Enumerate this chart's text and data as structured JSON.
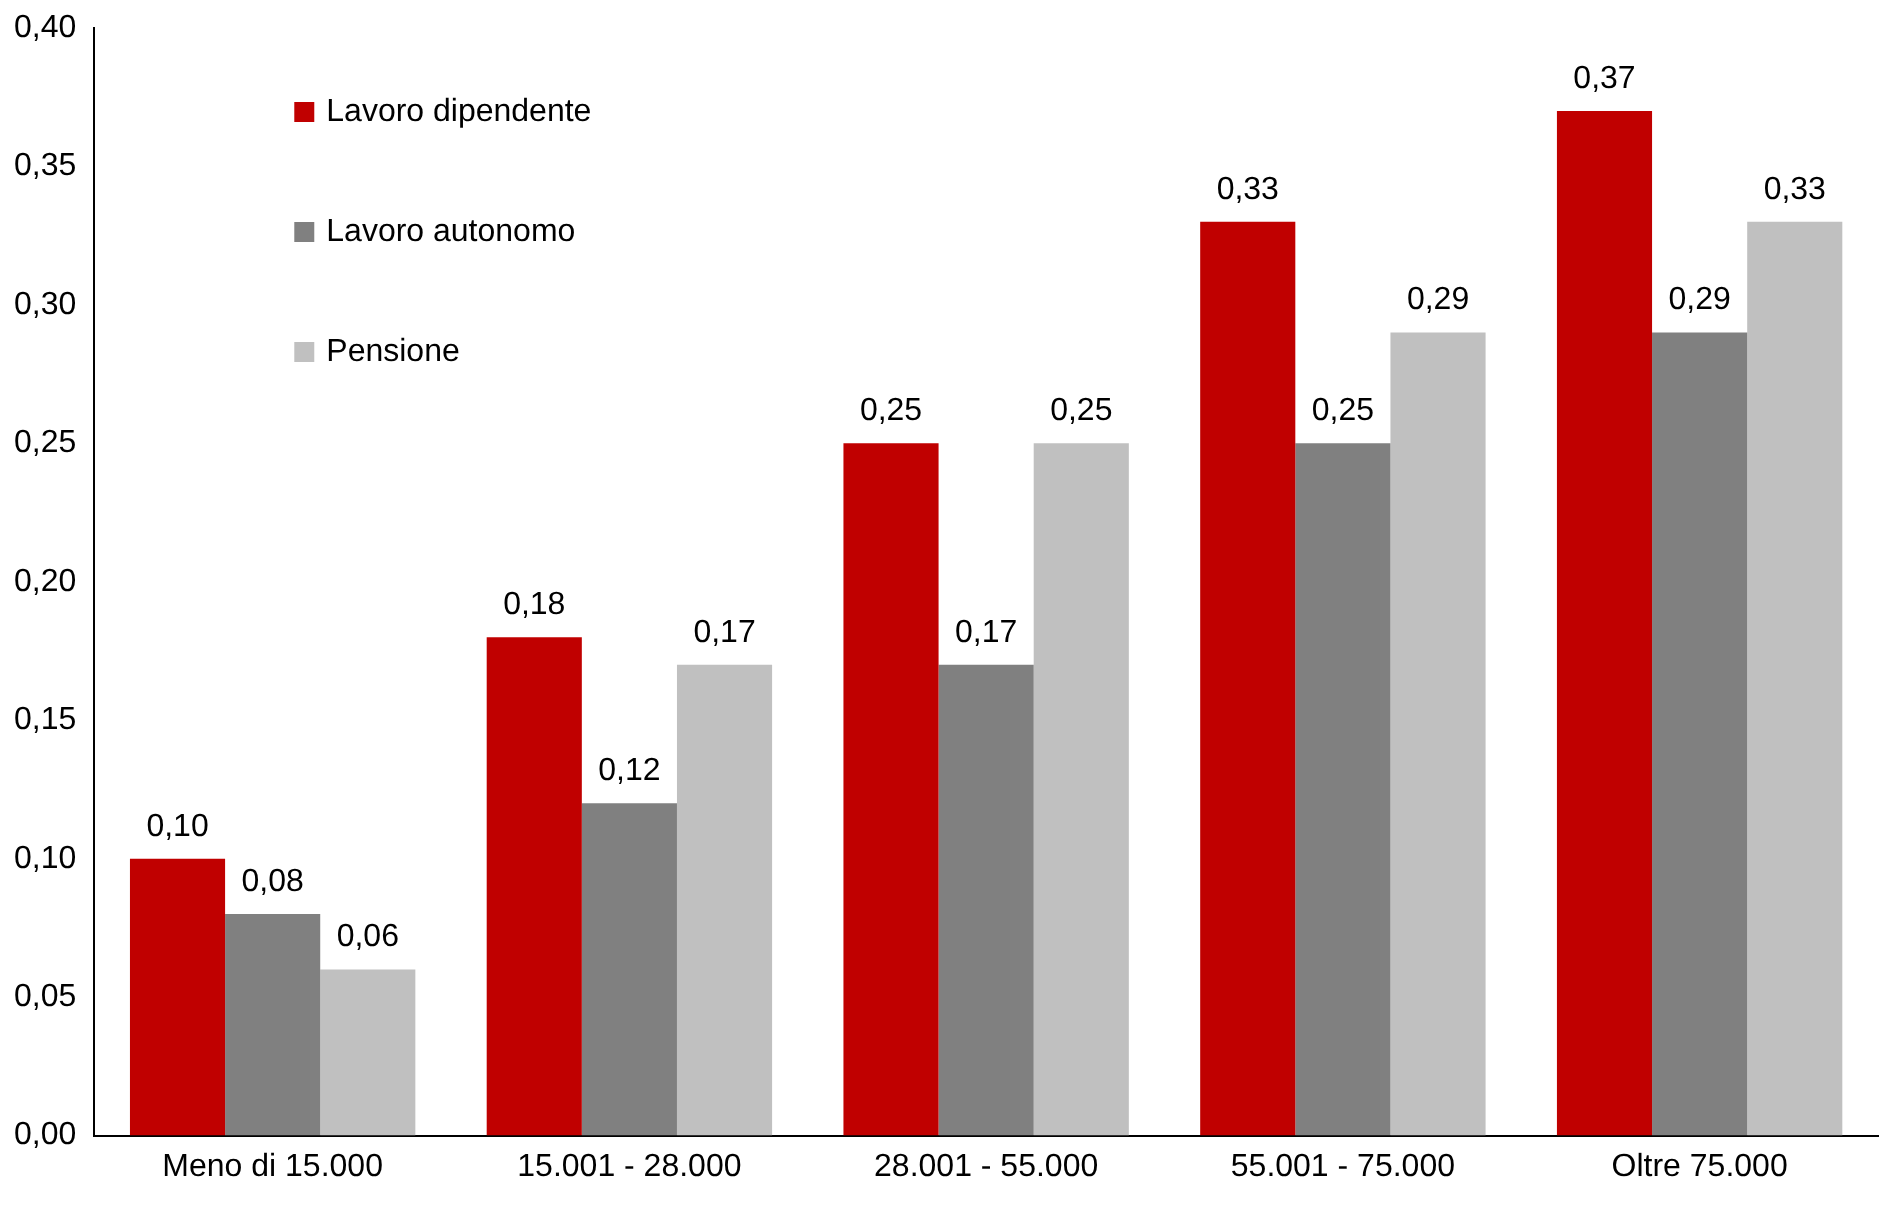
{
  "chart_data": {
    "type": "bar",
    "categories": [
      "Meno di 15.000",
      "15.001 - 28.000",
      "28.001 - 55.000",
      "55.001 - 75.000",
      "Oltre 75.000"
    ],
    "series": [
      {
        "name": "Lavoro dipendente",
        "color": "#c00000",
        "values": [
          0.1,
          0.18,
          0.25,
          0.33,
          0.37
        ],
        "value_labels": [
          "0,10",
          "0,18",
          "0,25",
          "0,33",
          "0,37"
        ]
      },
      {
        "name": "Lavoro autonomo",
        "color": "#808080",
        "values": [
          0.08,
          0.12,
          0.17,
          0.25,
          0.29
        ],
        "value_labels": [
          "0,08",
          "0,12",
          "0,17",
          "0,25",
          "0,29"
        ]
      },
      {
        "name": "Pensione",
        "color": "#c0c0c0",
        "values": [
          0.06,
          0.17,
          0.25,
          0.29,
          0.33
        ],
        "value_labels": [
          "0,06",
          "0,17",
          "0,25",
          "0,29",
          "0,33"
        ]
      }
    ],
    "ylim": [
      0,
      0.4
    ],
    "yticks": [
      {
        "value": 0,
        "label": "0,00"
      },
      {
        "value": 0.05,
        "label": "0,05"
      },
      {
        "value": 0.1,
        "label": "0,10"
      },
      {
        "value": 0.15,
        "label": "0,15"
      },
      {
        "value": 0.2,
        "label": "0,20"
      },
      {
        "value": 0.25,
        "label": "0,25"
      },
      {
        "value": 0.3,
        "label": "0,30"
      },
      {
        "value": 0.35,
        "label": "0,35"
      },
      {
        "value": 0.4,
        "label": "0,40"
      }
    ],
    "grid": false,
    "legend": "top left"
  }
}
